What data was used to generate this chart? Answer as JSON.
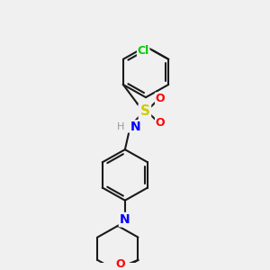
{
  "background_color": "#f0f0f0",
  "bond_color": "#1a1a1a",
  "colors": {
    "Cl": "#00cc00",
    "S": "#cccc00",
    "O": "#ff0000",
    "N": "#0000ff",
    "H": "#999999",
    "C": "#1a1a1a"
  },
  "title": "",
  "figsize": [
    3.0,
    3.0
  ],
  "dpi": 100
}
